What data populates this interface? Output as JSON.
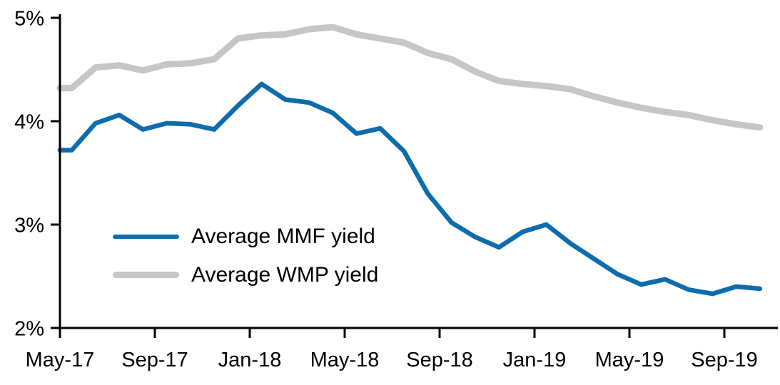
{
  "chart_data": {
    "type": "line",
    "title": "",
    "xlabel": "",
    "ylabel": "",
    "x": [
      "May-17",
      "Jun-17",
      "Jul-17",
      "Aug-17",
      "Sep-17",
      "Oct-17",
      "Nov-17",
      "Dec-17",
      "Jan-18",
      "Feb-18",
      "Mar-18",
      "Apr-18",
      "May-18",
      "Jun-18",
      "Jul-18",
      "Aug-18",
      "Sep-18",
      "Oct-18",
      "Nov-18",
      "Dec-18",
      "Jan-19",
      "Feb-19",
      "Mar-19",
      "Apr-19",
      "May-19",
      "Jun-19",
      "Jul-19",
      "Aug-19",
      "Sep-19",
      "Oct-19"
    ],
    "series": [
      {
        "name": "Average MMF yield",
        "color": "#0d6cad",
        "values": [
          3.72,
          3.98,
          4.06,
          3.92,
          3.98,
          3.97,
          3.92,
          4.15,
          4.36,
          4.21,
          4.18,
          4.08,
          3.88,
          3.93,
          3.71,
          3.3,
          3.02,
          2.88,
          2.78,
          2.93,
          3.0,
          2.82,
          2.67,
          2.52,
          2.42,
          2.47,
          2.37,
          2.33,
          2.4,
          2.38
        ]
      },
      {
        "name": "Average WMP yield",
        "color": "#c6c6c6",
        "values": [
          4.32,
          4.52,
          4.54,
          4.49,
          4.55,
          4.56,
          4.6,
          4.8,
          4.83,
          4.84,
          4.89,
          4.91,
          4.84,
          4.8,
          4.76,
          4.66,
          4.6,
          4.48,
          4.39,
          4.36,
          4.34,
          4.31,
          4.24,
          4.18,
          4.13,
          4.09,
          4.06,
          4.01,
          3.97,
          3.94
        ]
      }
    ],
    "ylim": [
      2,
      5
    ],
    "y_tick_labels": [
      "5%",
      "4%",
      "3%",
      "2%"
    ],
    "y_tick_values": [
      5,
      4,
      3,
      2
    ],
    "x_tick_labels": [
      "May-17",
      "Sep-17",
      "Jan-18",
      "May-18",
      "Sep-18",
      "Jan-19",
      "May-19",
      "Sep-19"
    ],
    "x_tick_every_n_months": 4,
    "grid": false,
    "legend_position": "inside-left-middle",
    "axis_color": "#000000"
  }
}
